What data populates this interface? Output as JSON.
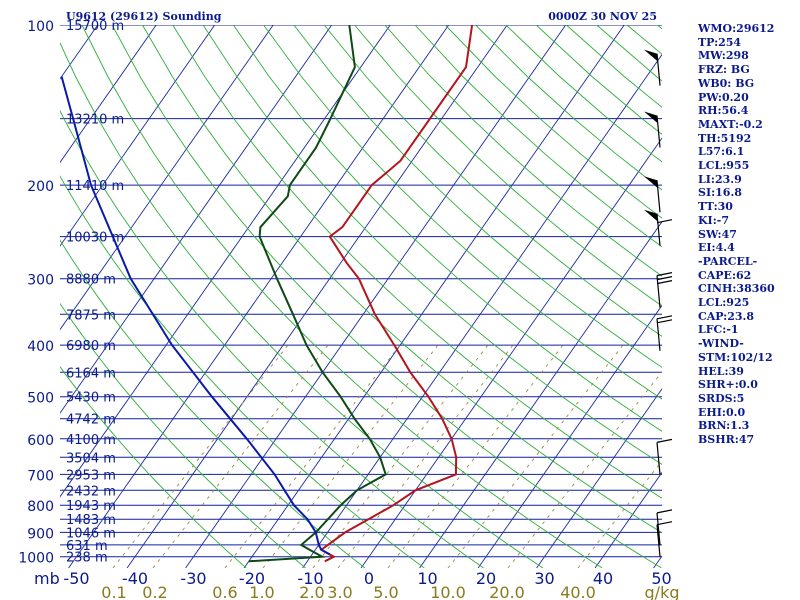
{
  "header": {
    "station": "U9612 (29612) Sounding",
    "time": "0000Z 30 NOV 25"
  },
  "sidebar": [
    "WMO:29612",
    "TP:254",
    "MW:298",
    "FRZ: BG",
    "WB0: BG",
    "PW:0.20",
    "RH:56.4",
    "MAXT:-0.2",
    "TH:5192",
    "L57:6.1",
    "LCL:955",
    "LI:23.9",
    "SI:16.8",
    "TT:30",
    "KI:-7",
    "SW:47",
    "EI:4.4",
    "-PARCEL-",
    "CAPE:62",
    "CINH:38360",
    "LCL:925",
    "CAP:23.8",
    "LFC:-1",
    "-WIND-",
    "STM:102/12",
    "HEL:39",
    "SHR+:0.0",
    "SRDS:5",
    "EHI:0.0",
    "BRN:1.3",
    "BSHR:47"
  ],
  "chart_data": {
    "type": "skew-t",
    "title": "U9612 (29612) Sounding",
    "pressure_unit_label": "mb",
    "mixing_ratio_unit_label": "g/kg",
    "pressure_range": [
      1000,
      100
    ],
    "temperature_range": [
      -50,
      50
    ],
    "pressure_levels": [
      {
        "p": 100,
        "label": "100"
      },
      {
        "p": 200,
        "label": "200"
      },
      {
        "p": 300,
        "label": "300"
      },
      {
        "p": 400,
        "label": "400"
      },
      {
        "p": 500,
        "label": "500"
      },
      {
        "p": 600,
        "label": "600"
      },
      {
        "p": 700,
        "label": "700"
      },
      {
        "p": 800,
        "label": "800"
      },
      {
        "p": 900,
        "label": "900"
      },
      {
        "p": 1000,
        "label": "1000"
      }
    ],
    "height_labels": [
      {
        "p": 100,
        "label": "15700 m"
      },
      {
        "p": 150,
        "label": "13210 m"
      },
      {
        "p": 200,
        "label": "11410 m"
      },
      {
        "p": 250,
        "label": "10030 m"
      },
      {
        "p": 300,
        "label": "8880 m"
      },
      {
        "p": 350,
        "label": "7875 m"
      },
      {
        "p": 400,
        "label": "6980 m"
      },
      {
        "p": 450,
        "label": "6164 m"
      },
      {
        "p": 500,
        "label": "5430 m"
      },
      {
        "p": 550,
        "label": "4742 m"
      },
      {
        "p": 600,
        "label": "4100 m"
      },
      {
        "p": 650,
        "label": "3504 m"
      },
      {
        "p": 700,
        "label": "2953 m"
      },
      {
        "p": 750,
        "label": "2432 m"
      },
      {
        "p": 800,
        "label": "1943 m"
      },
      {
        "p": 850,
        "label": "1483 m"
      },
      {
        "p": 900,
        "label": "1046 m"
      },
      {
        "p": 950,
        "label": "631 m"
      },
      {
        "p": 1000,
        "label": "238 m"
      }
    ],
    "temperature_ticks": [
      -50,
      -40,
      -30,
      -20,
      -10,
      0,
      10,
      20,
      30,
      40,
      50
    ],
    "mixing_ratio_ticks": [
      "0.1",
      "0.2",
      "0.6",
      "1.0",
      "2.0",
      "3.0",
      "5.0",
      "10.0",
      "20.0",
      "40.0"
    ],
    "series": [
      {
        "name": "Temperature",
        "color": "#b4141e",
        "points": [
          [
            1020,
            -7
          ],
          [
            1000,
            -6
          ],
          [
            970,
            -9
          ],
          [
            900,
            -7
          ],
          [
            800,
            -2
          ],
          [
            750,
            0
          ],
          [
            700,
            5
          ],
          [
            650,
            3
          ],
          [
            600,
            0
          ],
          [
            550,
            -4
          ],
          [
            500,
            -9
          ],
          [
            450,
            -15
          ],
          [
            400,
            -21
          ],
          [
            350,
            -28
          ],
          [
            300,
            -35
          ],
          [
            280,
            -39
          ],
          [
            250,
            -45
          ],
          [
            240,
            -44
          ],
          [
            220,
            -44
          ],
          [
            200,
            -44
          ],
          [
            180,
            -42
          ],
          [
            150,
            -42
          ],
          [
            120,
            -42
          ],
          [
            100,
            -46
          ]
        ]
      },
      {
        "name": "Dewpoint",
        "color": "#0e4a14",
        "points": [
          [
            1020,
            -20
          ],
          [
            1000,
            -8
          ],
          [
            970,
            -11
          ],
          [
            950,
            -13
          ],
          [
            900,
            -12
          ],
          [
            800,
            -11
          ],
          [
            750,
            -10
          ],
          [
            700,
            -7
          ],
          [
            650,
            -10
          ],
          [
            600,
            -14
          ],
          [
            550,
            -19
          ],
          [
            500,
            -24
          ],
          [
            450,
            -30
          ],
          [
            400,
            -36
          ],
          [
            350,
            -42
          ],
          [
            300,
            -49
          ],
          [
            250,
            -57
          ],
          [
            240,
            -58
          ],
          [
            210,
            -57
          ],
          [
            200,
            -58
          ],
          [
            170,
            -58
          ],
          [
            150,
            -59
          ],
          [
            120,
            -61
          ],
          [
            100,
            -67
          ]
        ]
      },
      {
        "name": "Parcel",
        "color": "#0a1aa8",
        "points": [
          [
            990,
            -7
          ],
          [
            970,
            -9
          ],
          [
            950,
            -10
          ],
          [
            900,
            -12
          ],
          [
            850,
            -15
          ],
          [
            800,
            -19
          ],
          [
            700,
            -26
          ],
          [
            600,
            -35
          ],
          [
            500,
            -46
          ],
          [
            400,
            -59
          ],
          [
            300,
            -74
          ],
          [
            200,
            -92
          ],
          [
            150,
            -103
          ],
          [
            125,
            -110
          ]
        ]
      }
    ],
    "wind_barbs": [
      {
        "p": 130,
        "flags": 1,
        "full": 0,
        "half": 0
      },
      {
        "p": 170,
        "flags": 1,
        "full": 0,
        "half": 0
      },
      {
        "p": 225,
        "flags": 1,
        "full": 0,
        "half": 0
      },
      {
        "p": 260,
        "flags": 1,
        "full": 1,
        "half": 0
      },
      {
        "p": 340,
        "flags": 0,
        "full": 3,
        "half": 0
      },
      {
        "p": 410,
        "flags": 0,
        "full": 2,
        "half": 0
      },
      {
        "p": 700,
        "flags": 0,
        "full": 1,
        "half": 0
      },
      {
        "p": 950,
        "flags": 0,
        "full": 1,
        "half": 0
      },
      {
        "p": 1000,
        "flags": 0,
        "full": 1,
        "half": 0
      }
    ]
  }
}
